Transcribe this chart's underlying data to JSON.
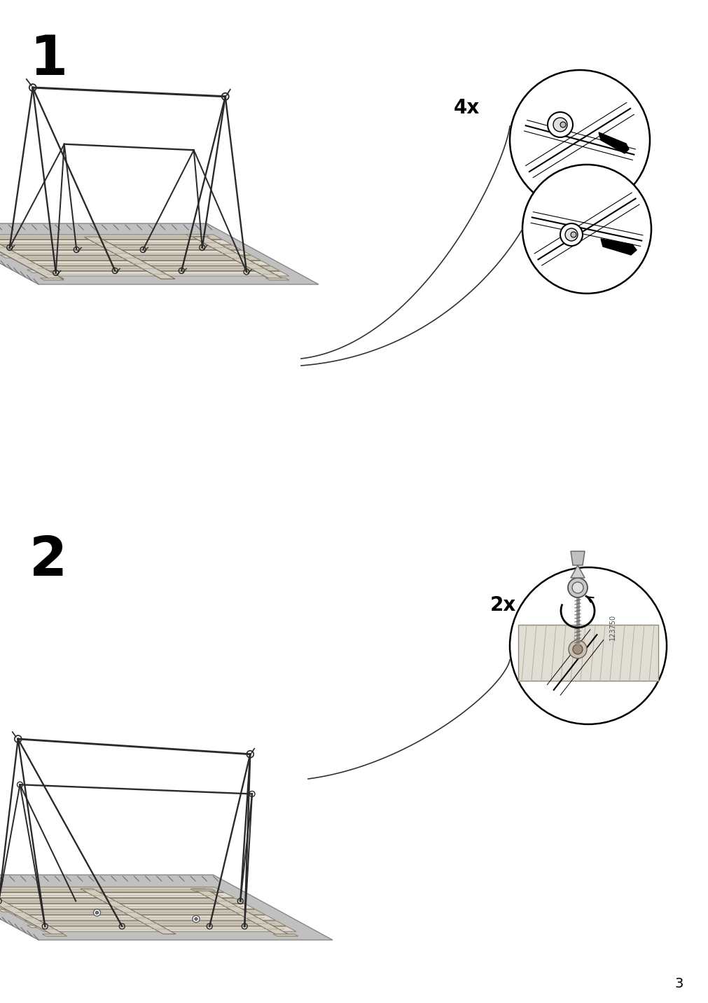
{
  "page_number": "3",
  "background_color": "#ffffff",
  "step1_label": "1",
  "step2_label": "2",
  "step1_qty": "4x",
  "step2_qty": "2x",
  "step2_part_number": "123750",
  "line_color": "#000000",
  "frame_color": "#2a2a2a",
  "mat_color": "#c8c8c8",
  "mat_edge": "#888888",
  "wood_light": "#e0dbd0",
  "wood_mid": "#ccc6b8",
  "wood_dark": "#a8a090",
  "wood_edge": "#888070"
}
